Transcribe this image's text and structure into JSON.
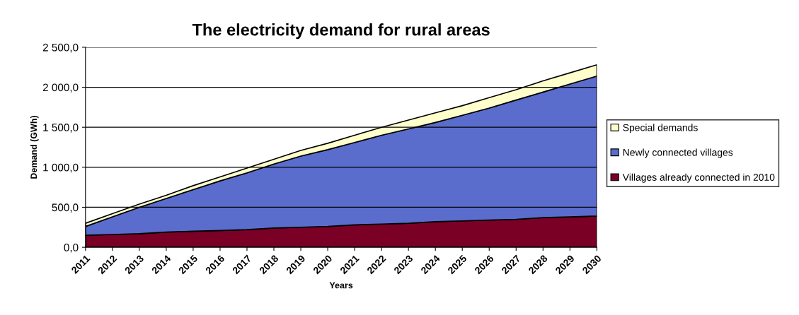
{
  "chart_data": {
    "type": "area",
    "stacked": true,
    "title": "The electricity demand for rural areas",
    "xlabel": "Years",
    "ylabel": "Demand (GWh)",
    "categories": [
      "2011",
      "2012",
      "2013",
      "2014",
      "2015",
      "2016",
      "2017",
      "2018",
      "2019",
      "2020",
      "2021",
      "2022",
      "2023",
      "2024",
      "2025",
      "2026",
      "2027",
      "2028",
      "2029",
      "2030"
    ],
    "series": [
      {
        "name": "Villages already connected in 2010",
        "color": "#7a0026",
        "values": [
          150,
          160,
          170,
          190,
          200,
          210,
          220,
          240,
          250,
          260,
          280,
          290,
          300,
          320,
          330,
          340,
          350,
          370,
          380,
          390
        ]
      },
      {
        "name": "Newly connected villages",
        "color": "#5a6ccc",
        "values": [
          110,
          220,
          330,
          420,
          520,
          620,
          710,
          800,
          890,
          960,
          1030,
          1110,
          1180,
          1240,
          1320,
          1400,
          1490,
          1570,
          1660,
          1750
        ]
      },
      {
        "name": "Special demands",
        "color": "#ffffcc",
        "values": [
          40,
          40,
          40,
          40,
          50,
          50,
          60,
          60,
          70,
          80,
          90,
          100,
          110,
          120,
          120,
          130,
          130,
          140,
          140,
          140
        ]
      }
    ],
    "ylim": [
      0,
      2500
    ],
    "yticks": [
      {
        "value": 0,
        "label": "0,0"
      },
      {
        "value": 500,
        "label": "500,0"
      },
      {
        "value": 1000,
        "label": "1 000,0"
      },
      {
        "value": 1500,
        "label": "1 500,0"
      },
      {
        "value": 2000,
        "label": "2 000,0"
      },
      {
        "value": 2500,
        "label": "2 500,0"
      }
    ],
    "grid": "y",
    "legend": "right"
  }
}
